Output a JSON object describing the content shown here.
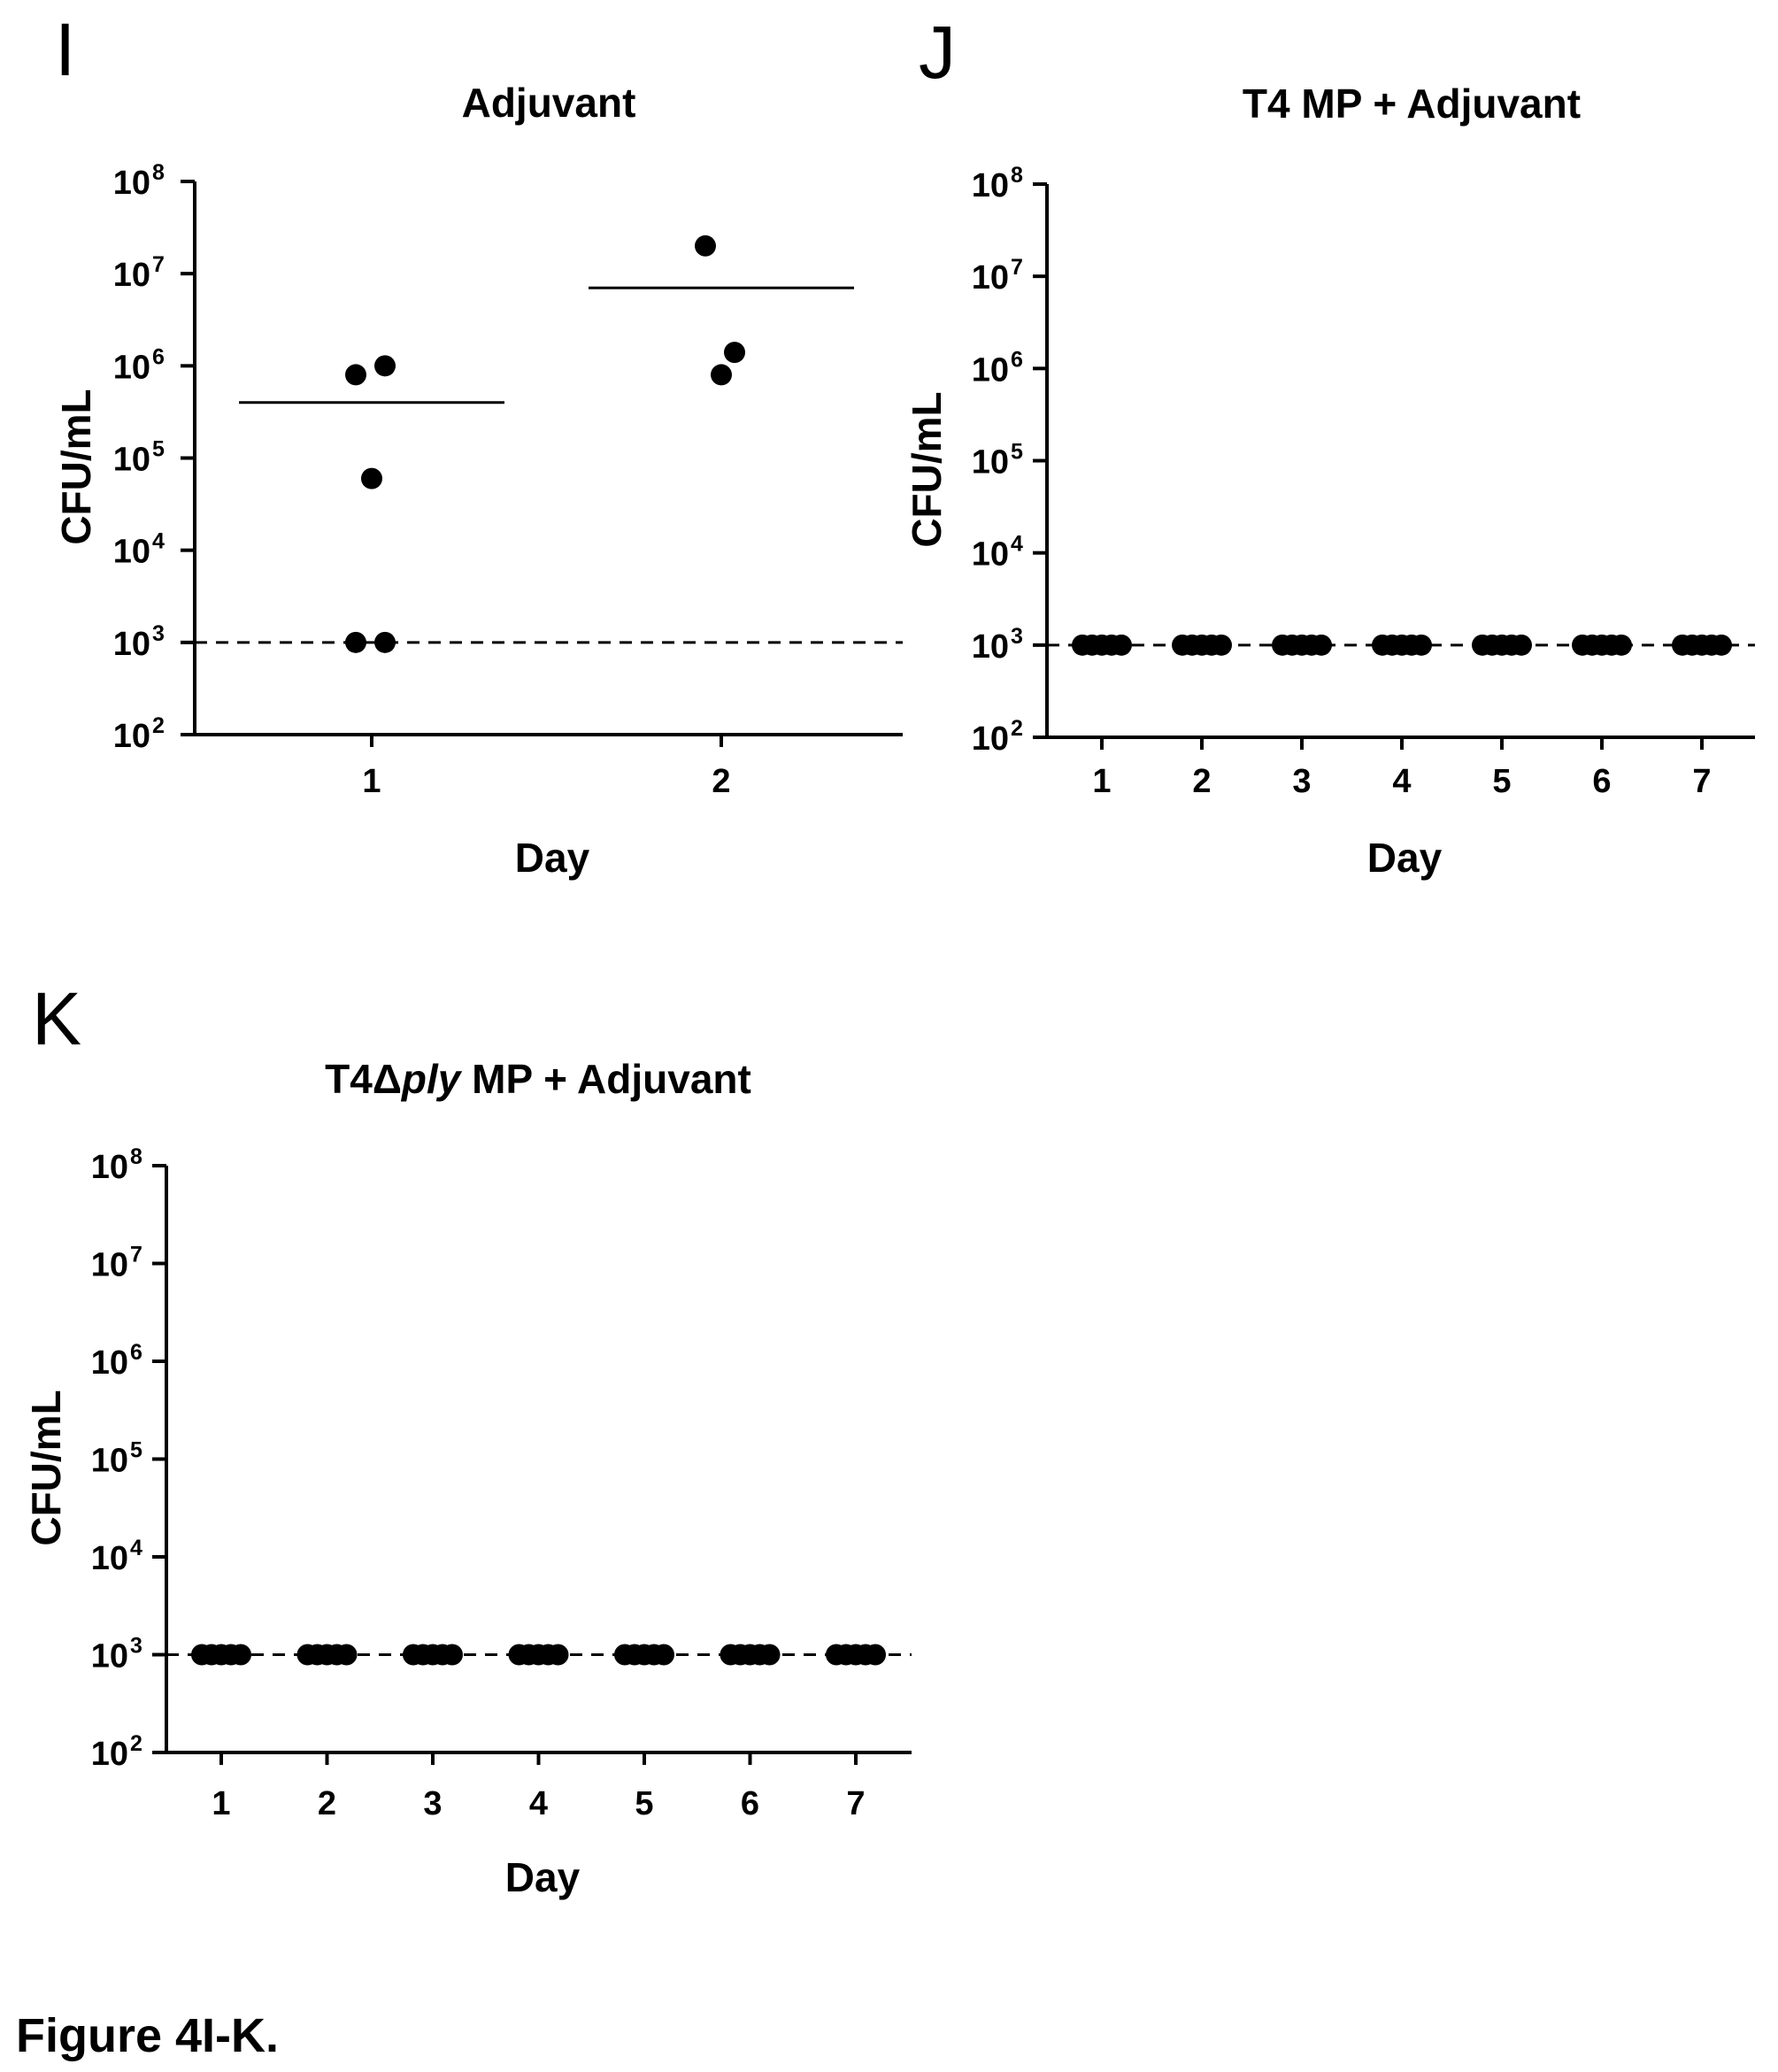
{
  "figure_caption": "Figure 4I-K.",
  "chart_data": [
    {
      "panel": "I",
      "type": "scatter",
      "title": "Adjuvant",
      "title_parts": [
        {
          "text": "Adjuvant",
          "italic": false
        }
      ],
      "xlabel": "Day",
      "ylabel": "CFU/mL",
      "y_scale": "log10",
      "ylim": [
        100,
        100000000
      ],
      "y_tick_exponents": [
        2,
        3,
        4,
        5,
        6,
        7,
        8
      ],
      "y_tick_base": "10",
      "categories": [
        "1",
        "2"
      ],
      "points": [
        {
          "day": "1",
          "value": 800000
        },
        {
          "day": "1",
          "value": 1000000
        },
        {
          "day": "1",
          "value": 60000
        },
        {
          "day": "1",
          "value": 1000
        },
        {
          "day": "1",
          "value": 1000
        },
        {
          "day": "2",
          "value": 20000000
        },
        {
          "day": "2",
          "value": 1400000
        },
        {
          "day": "2",
          "value": 800000
        }
      ],
      "means": [
        {
          "day": "1",
          "value": 400000
        },
        {
          "day": "2",
          "value": 7000000
        }
      ],
      "detection_limit": 1000,
      "grid": false
    },
    {
      "panel": "J",
      "type": "scatter",
      "title": "T4 MP + Adjuvant",
      "title_parts": [
        {
          "text": "T4 MP + Adjuvant",
          "italic": false
        }
      ],
      "xlabel": "Day",
      "ylabel": "CFU/mL",
      "y_scale": "log10",
      "ylim": [
        100,
        100000000
      ],
      "y_tick_exponents": [
        2,
        3,
        4,
        5,
        6,
        7,
        8
      ],
      "y_tick_base": "10",
      "categories": [
        "1",
        "2",
        "3",
        "4",
        "5",
        "6",
        "7"
      ],
      "points_per_day_at_limit": 5,
      "detection_limit": 1000,
      "grid": false
    },
    {
      "panel": "K",
      "type": "scatter",
      "title": "T4Δply MP + Adjuvant",
      "title_parts": [
        {
          "text": "T4Δ",
          "italic": false
        },
        {
          "text": "ply",
          "italic": true
        },
        {
          "text": " MP + Adjuvant",
          "italic": false
        }
      ],
      "xlabel": "Day",
      "ylabel": "CFU/mL",
      "y_scale": "log10",
      "ylim": [
        100,
        100000000
      ],
      "y_tick_exponents": [
        2,
        3,
        4,
        5,
        6,
        7,
        8
      ],
      "y_tick_base": "10",
      "categories": [
        "1",
        "2",
        "3",
        "4",
        "5",
        "6",
        "7"
      ],
      "points_per_day_at_limit": 5,
      "detection_limit": 1000,
      "grid": false
    }
  ]
}
